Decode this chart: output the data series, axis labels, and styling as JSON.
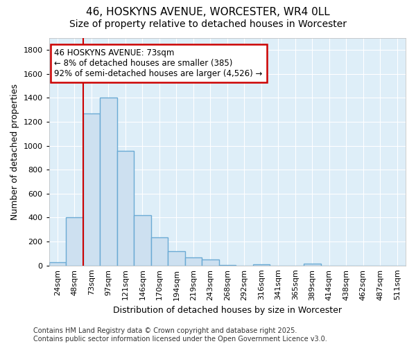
{
  "title": "46, HOSKYNS AVENUE, WORCESTER, WR4 0LL",
  "subtitle": "Size of property relative to detached houses in Worcester",
  "xlabel": "Distribution of detached houses by size in Worcester",
  "ylabel": "Number of detached properties",
  "categories": [
    "24sqm",
    "48sqm",
    "73sqm",
    "97sqm",
    "121sqm",
    "146sqm",
    "170sqm",
    "194sqm",
    "219sqm",
    "243sqm",
    "268sqm",
    "292sqm",
    "316sqm",
    "341sqm",
    "365sqm",
    "389sqm",
    "414sqm",
    "438sqm",
    "462sqm",
    "487sqm",
    "511sqm"
  ],
  "values": [
    25,
    400,
    1270,
    1400,
    960,
    420,
    235,
    120,
    70,
    50,
    5,
    0,
    10,
    0,
    0,
    15,
    0,
    0,
    0,
    0,
    0
  ],
  "bar_color": "#cde0f0",
  "bar_edge_color": "#6aaad4",
  "bar_edge_width": 1.0,
  "red_line_x": 2,
  "red_line_color": "#cc0000",
  "ylim": [
    0,
    1900
  ],
  "yticks": [
    0,
    200,
    400,
    600,
    800,
    1000,
    1200,
    1400,
    1600,
    1800
  ],
  "annotation_text": "46 HOSKYNS AVENUE: 73sqm\n← 8% of detached houses are smaller (385)\n92% of semi-detached houses are larger (4,526) →",
  "annotation_box_color": "#ffffff",
  "annotation_box_edge_color": "#cc0000",
  "figure_bg_color": "#ffffff",
  "plot_bg_color": "#deeef8",
  "grid_color": "#ffffff",
  "footer_line1": "Contains HM Land Registry data © Crown copyright and database right 2025.",
  "footer_line2": "Contains public sector information licensed under the Open Government Licence v3.0.",
  "title_fontsize": 11,
  "subtitle_fontsize": 10,
  "xlabel_fontsize": 9,
  "ylabel_fontsize": 9,
  "tick_fontsize": 8,
  "annotation_fontsize": 8.5,
  "footer_fontsize": 7
}
